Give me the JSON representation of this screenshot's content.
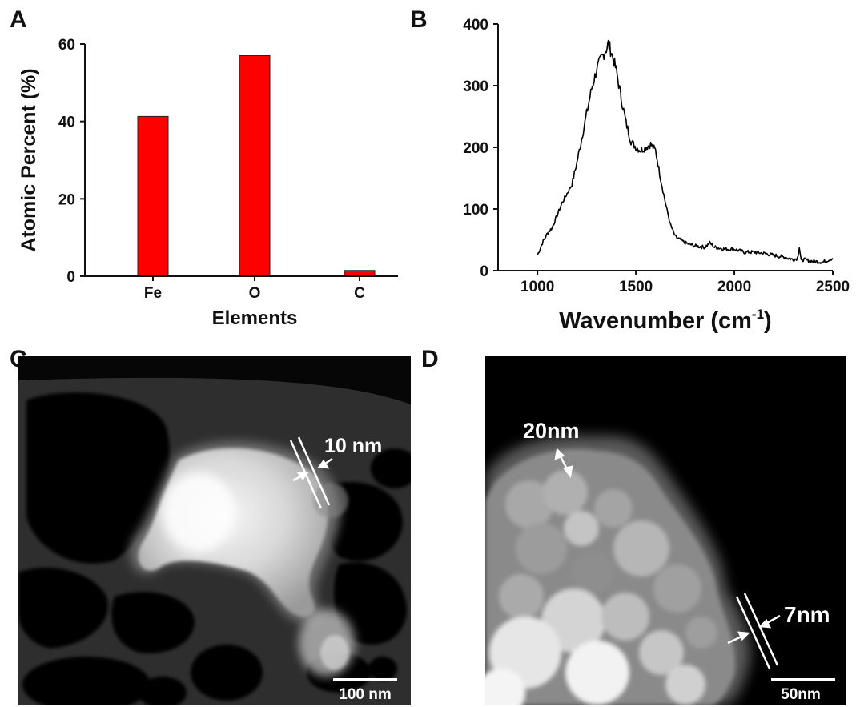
{
  "panels": [
    {
      "id": "A",
      "letter": "A"
    },
    {
      "id": "B",
      "letter": "B"
    },
    {
      "id": "C",
      "letter": "C"
    },
    {
      "id": "D",
      "letter": "D"
    }
  ],
  "chart_data": [
    {
      "panel": "A",
      "type": "bar",
      "categories": [
        "Fe",
        "O",
        "C"
      ],
      "values": [
        41.3,
        57.0,
        1.5
      ],
      "xlabel": "Elements",
      "ylabel": "Atomic Percent (%)",
      "ylim": [
        0,
        60
      ],
      "yticks": [
        0,
        20,
        40,
        60
      ],
      "bar_color": "#ff0000",
      "grid": false
    },
    {
      "panel": "B",
      "type": "line",
      "xlabel": "Wavenumber (cm",
      "xlabel_sup": "-1",
      "xlabel_end": ")",
      "xlim": [
        800,
        2500
      ],
      "ylim": [
        0,
        400
      ],
      "xticks": [
        1000,
        1500,
        2000,
        2500
      ],
      "yticks": [
        0,
        100,
        200,
        300,
        400
      ],
      "line_color": "#000000",
      "grid": false,
      "x": [
        1000,
        1025,
        1050,
        1075,
        1100,
        1125,
        1150,
        1175,
        1200,
        1225,
        1250,
        1275,
        1300,
        1325,
        1350,
        1360,
        1375,
        1400,
        1425,
        1450,
        1475,
        1500,
        1525,
        1550,
        1575,
        1600,
        1625,
        1650,
        1675,
        1700,
        1725,
        1750,
        1800,
        1850,
        1875,
        1900,
        1950,
        2000,
        2050,
        2100,
        2150,
        2200,
        2250,
        2300,
        2320,
        2330,
        2340,
        2350,
        2400,
        2450,
        2500
      ],
      "y": [
        25,
        45,
        60,
        70,
        90,
        110,
        125,
        140,
        175,
        215,
        255,
        295,
        325,
        345,
        360,
        368,
        355,
        325,
        280,
        240,
        210,
        200,
        195,
        200,
        205,
        195,
        150,
        110,
        75,
        55,
        50,
        45,
        40,
        38,
        45,
        38,
        35,
        35,
        30,
        30,
        28,
        25,
        22,
        18,
        20,
        38,
        15,
        18,
        15,
        14,
        20
      ]
    }
  ],
  "micrographs": {
    "C": {
      "thickness_label": "10 nm",
      "scale_bar_label": "100 nm"
    },
    "D": {
      "size_label": "20nm",
      "thickness_label": "7nm",
      "scale_bar_label": "50nm"
    }
  }
}
